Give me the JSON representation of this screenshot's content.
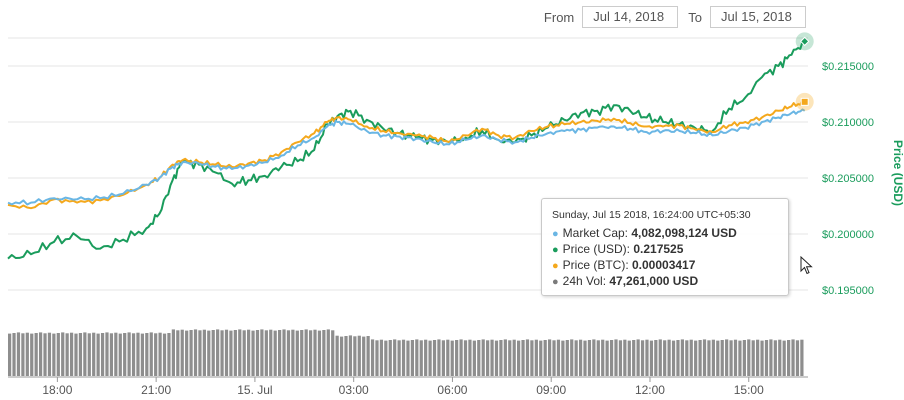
{
  "range": {
    "from_label": "From",
    "from_value": "Jul 14, 2018",
    "to_label": "To",
    "to_value": "Jul 15, 2018"
  },
  "colors": {
    "market_cap": "#6ab6e4",
    "price_usd": "#1a9c5c",
    "price_btc": "#f4a81c",
    "volume": "#7a7a7a",
    "grid": "#e6e6e6",
    "axis_text": "#1a9c5c"
  },
  "tooltip": {
    "date": "Sunday, Jul 15 2018, 16:24:00 UTC+05:30",
    "rows": [
      {
        "label": "Market Cap:",
        "value": "4,082,098,124 USD",
        "color": "#6ab6e4"
      },
      {
        "label": "Price (USD):",
        "value": "0.217525",
        "color": "#1a9c5c"
      },
      {
        "label": "Price (BTC):",
        "value": "0.00003417",
        "color": "#f4a81c"
      },
      {
        "label": "24h Vol:",
        "value": "47,261,000 USD",
        "color": "#7a7a7a"
      }
    ]
  },
  "chart_data": {
    "type": "line",
    "ylabel": "Price (USD)",
    "ylim": [
      0.1925,
      0.2175
    ],
    "y_ticks": [
      "$0.215000",
      "$0.210000",
      "$0.205000",
      "$0.200000",
      "$0.195000"
    ],
    "y_tick_values": [
      0.215,
      0.21,
      0.205,
      0.2,
      0.195
    ],
    "x_ticks": [
      "18:00",
      "21:00",
      "15. Jul",
      "03:00",
      "06:00",
      "09:00",
      "12:00",
      "15:00"
    ],
    "x_tick_hours": [
      1.5,
      4.5,
      7.5,
      10.5,
      13.5,
      16.5,
      19.5,
      22.5
    ],
    "x_range_hours": [
      0,
      24.3
    ],
    "grid": true,
    "series": [
      {
        "name": "Price (USD)",
        "color": "#1a9c5c",
        "x": [
          0,
          0.7,
          1.4,
          2.1,
          2.8,
          3.5,
          4.2,
          4.6,
          5.0,
          5.3,
          5.8,
          6.3,
          6.8,
          7.3,
          7.8,
          8.3,
          8.8,
          9.3,
          9.7,
          10.0,
          10.4,
          10.9,
          11.4,
          11.9,
          12.4,
          12.9,
          13.4,
          13.9,
          14.4,
          14.9,
          15.4,
          15.9,
          16.4,
          16.9,
          17.4,
          17.9,
          18.4,
          18.9,
          19.4,
          19.9,
          20.4,
          20.9,
          21.4,
          21.9,
          22.4,
          22.9,
          23.4,
          23.8,
          24.2
        ],
        "values": [
          0.1978,
          0.1982,
          0.1993,
          0.1998,
          0.1987,
          0.1995,
          0.2005,
          0.2018,
          0.2048,
          0.2065,
          0.2062,
          0.2055,
          0.2045,
          0.2048,
          0.2052,
          0.206,
          0.2065,
          0.2075,
          0.2098,
          0.2105,
          0.211,
          0.2102,
          0.2094,
          0.209,
          0.2086,
          0.2084,
          0.2082,
          0.2086,
          0.2092,
          0.2084,
          0.2082,
          0.2088,
          0.2095,
          0.2102,
          0.2108,
          0.211,
          0.2115,
          0.211,
          0.2104,
          0.21,
          0.2098,
          0.2094,
          0.2092,
          0.2112,
          0.2122,
          0.214,
          0.215,
          0.216,
          0.2172
        ]
      },
      {
        "name": "Price (BTC)",
        "color": "#f4a81c",
        "x": [
          0,
          0.7,
          1.4,
          2.1,
          2.8,
          3.5,
          4.2,
          4.6,
          5.0,
          5.3,
          5.8,
          6.3,
          6.8,
          7.3,
          7.8,
          8.3,
          8.8,
          9.3,
          9.7,
          10.0,
          10.4,
          10.9,
          11.4,
          11.9,
          12.4,
          12.9,
          13.4,
          13.9,
          14.4,
          14.9,
          15.4,
          15.9,
          16.4,
          16.9,
          17.4,
          17.9,
          18.4,
          18.9,
          19.4,
          19.9,
          20.4,
          20.9,
          21.4,
          21.9,
          22.4,
          22.9,
          23.4,
          23.8,
          24.2
        ],
        "values": [
          0.2026,
          0.2023,
          0.2031,
          0.2028,
          0.203,
          0.2035,
          0.2044,
          0.205,
          0.2062,
          0.2066,
          0.2064,
          0.2062,
          0.206,
          0.2063,
          0.2066,
          0.2073,
          0.2082,
          0.209,
          0.21,
          0.2104,
          0.2102,
          0.2096,
          0.2092,
          0.209,
          0.2088,
          0.2086,
          0.2082,
          0.2088,
          0.2094,
          0.2088,
          0.2086,
          0.2092,
          0.2096,
          0.2098,
          0.21,
          0.2101,
          0.2103,
          0.2099,
          0.2096,
          0.2096,
          0.2097,
          0.2093,
          0.2091,
          0.2097,
          0.21,
          0.2104,
          0.211,
          0.2114,
          0.2118
        ]
      },
      {
        "name": "Market Cap",
        "color": "#6ab6e4",
        "x": [
          0,
          0.7,
          1.4,
          2.1,
          2.8,
          3.5,
          4.2,
          4.6,
          5.0,
          5.3,
          5.8,
          6.3,
          6.8,
          7.3,
          7.8,
          8.3,
          8.8,
          9.3,
          9.7,
          10.0,
          10.4,
          10.9,
          11.4,
          11.9,
          12.4,
          12.9,
          13.4,
          13.9,
          14.4,
          14.9,
          15.4,
          15.9,
          16.4,
          16.9,
          17.4,
          17.9,
          18.4,
          18.9,
          19.4,
          19.9,
          20.4,
          20.9,
          21.4,
          21.9,
          22.4,
          22.9,
          23.4,
          23.8,
          24.2
        ],
        "values": [
          0.2028,
          0.2028,
          0.2032,
          0.2031,
          0.2032,
          0.2036,
          0.2044,
          0.205,
          0.206,
          0.2064,
          0.2063,
          0.206,
          0.2058,
          0.2061,
          0.2064,
          0.207,
          0.2079,
          0.2086,
          0.2096,
          0.21,
          0.2098,
          0.2092,
          0.2088,
          0.2087,
          0.2085,
          0.2082,
          0.208,
          0.2084,
          0.2088,
          0.2084,
          0.2082,
          0.2086,
          0.209,
          0.2092,
          0.2093,
          0.2095,
          0.2096,
          0.2094,
          0.2091,
          0.2092,
          0.2092,
          0.209,
          0.2088,
          0.2092,
          0.2095,
          0.21,
          0.2104,
          0.2108,
          0.211
        ]
      }
    ],
    "volume": {
      "name": "24h Vol",
      "color": "#7a7a7a",
      "x_start": 0,
      "x_end": 24.2,
      "bars": 180,
      "segments": [
        {
          "from_hour": 0,
          "to_hour": 5.0,
          "level": 0.86
        },
        {
          "from_hour": 5.0,
          "to_hour": 10.0,
          "level": 0.92
        },
        {
          "from_hour": 10.0,
          "to_hour": 11.0,
          "level": 0.8
        },
        {
          "from_hour": 11.0,
          "to_hour": 24.2,
          "level": 0.72
        }
      ]
    }
  }
}
